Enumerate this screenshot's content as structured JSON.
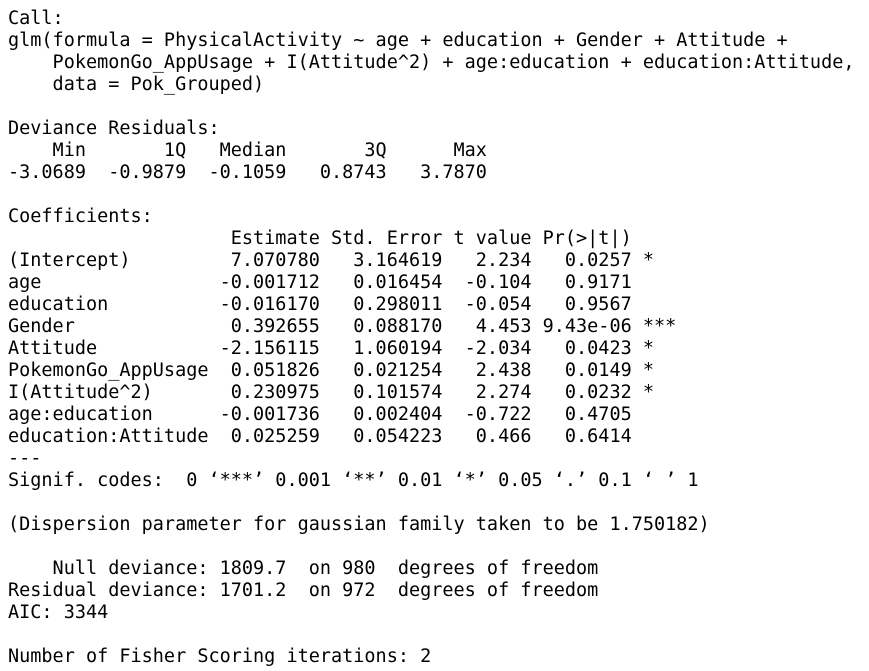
{
  "console": {
    "lines": [
      "Call:",
      "glm(formula = PhysicalActivity ~ age + education + Gender + Attitude +",
      "    PokemonGo_AppUsage + I(Attitude^2) + age:education + education:Attitude,",
      "    data = Pok_Grouped)",
      "",
      "Deviance Residuals:",
      "    Min       1Q   Median       3Q      Max",
      "-3.0689  -0.9879  -0.1059   0.8743   3.7870",
      "",
      "Coefficients:",
      "                    Estimate Std. Error t value Pr(>|t|)",
      "(Intercept)         7.070780   3.164619   2.234   0.0257 *",
      "age                -0.001712   0.016454  -0.104   0.9171",
      "education          -0.016170   0.298011  -0.054   0.9567",
      "Gender              0.392655   0.088170   4.453 9.43e-06 ***",
      "Attitude           -2.156115   1.060194  -2.034   0.0423 *",
      "PokemonGo_AppUsage  0.051826   0.021254   2.438   0.0149 *",
      "I(Attitude^2)       0.230975   0.101574   2.274   0.0232 *",
      "age:education      -0.001736   0.002404  -0.722   0.4705",
      "education:Attitude  0.025259   0.054223   0.466   0.6414",
      "---",
      "Signif. codes:  0 ‘***’ 0.001 ‘**’ 0.01 ‘*’ 0.05 ‘.’ 0.1 ‘ ’ 1",
      "",
      "(Dispersion parameter for gaussian family taken to be 1.750182)",
      "",
      "    Null deviance: 1809.7  on 980  degrees of freedom",
      "Residual deviance: 1701.2  on 972  degrees of freedom",
      "AIC: 3344",
      "",
      "Number of Fisher Scoring iterations: 2"
    ]
  }
}
